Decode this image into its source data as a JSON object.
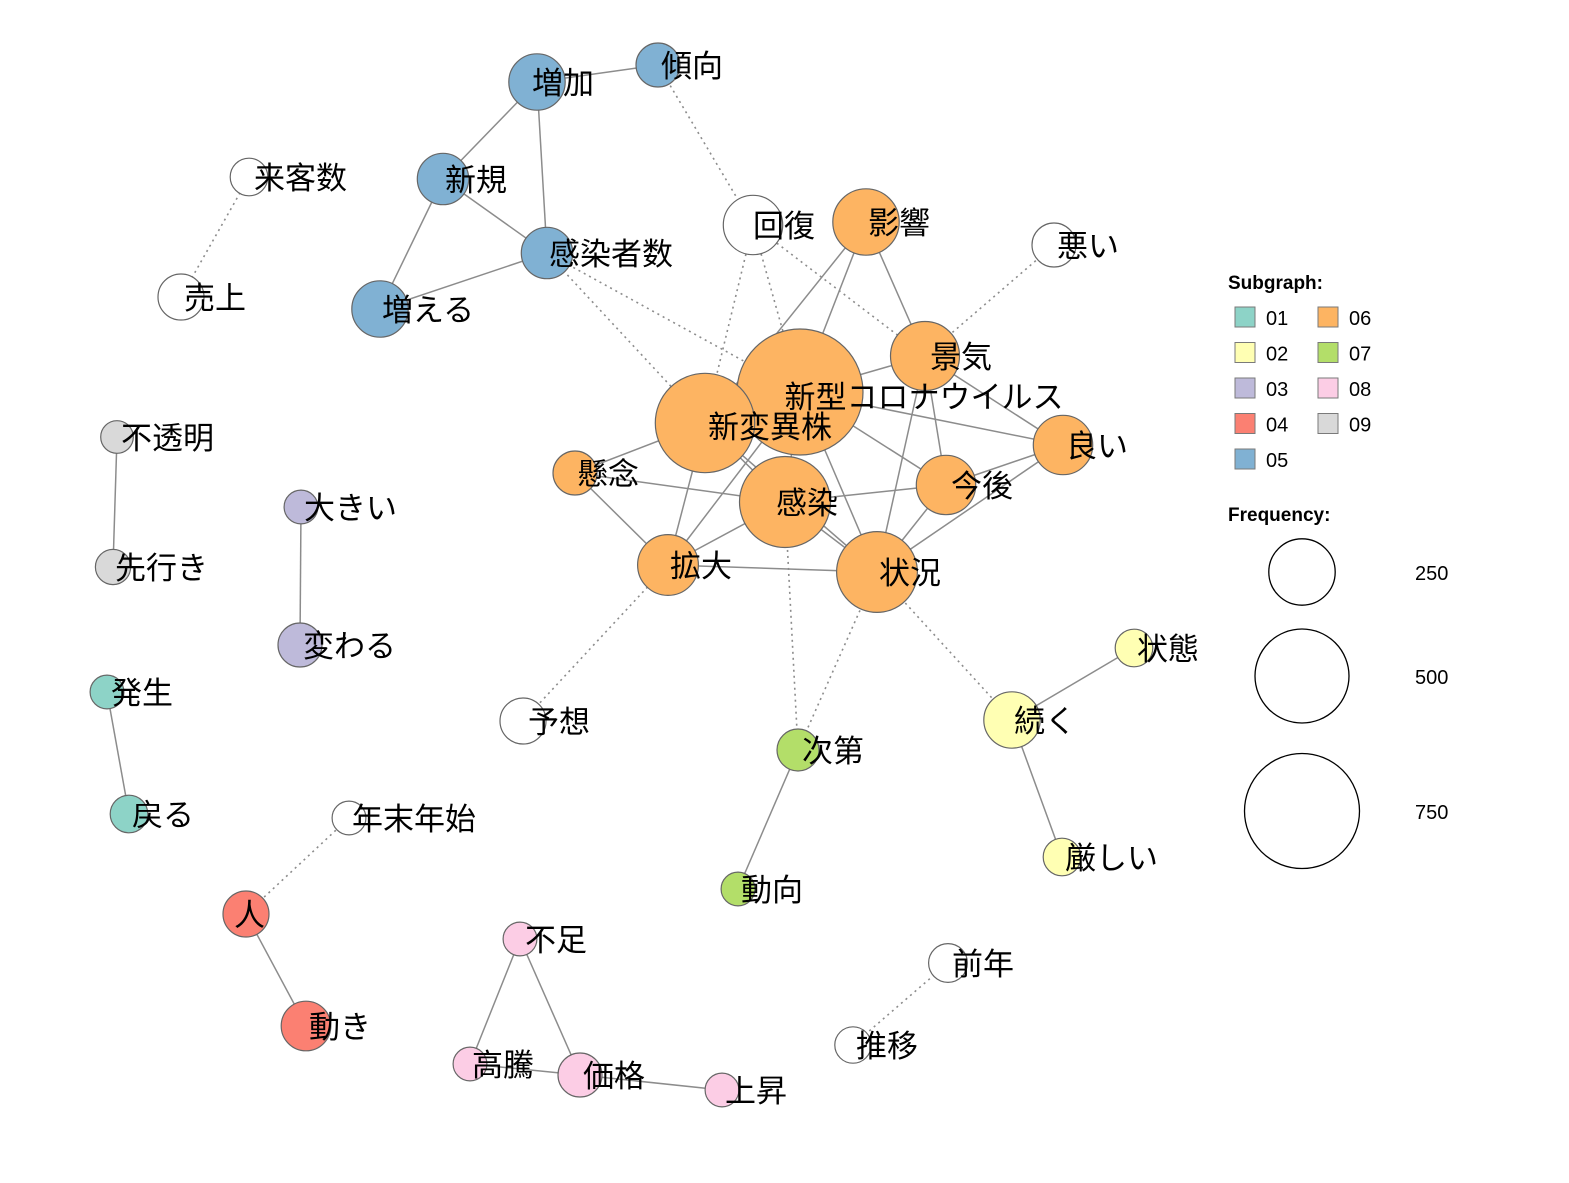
{
  "diagram": {
    "type": "co-occurrence-network",
    "nodes": [
      {
        "id": "zouka",
        "label": "増加",
        "group": "05",
        "freq": 180
      },
      {
        "id": "keikou",
        "label": "傾向",
        "group": "05",
        "freq": 110
      },
      {
        "id": "raikyakusuu",
        "label": "来客数",
        "group": "none",
        "freq": 80
      },
      {
        "id": "uriage",
        "label": "売上",
        "group": "none",
        "freq": 120
      },
      {
        "id": "shinki",
        "label": "新規",
        "group": "05",
        "freq": 150
      },
      {
        "id": "kansenshasuu",
        "label": "感染者数",
        "group": "05",
        "freq": 150
      },
      {
        "id": "fueru",
        "label": "増える",
        "group": "05",
        "freq": 180
      },
      {
        "id": "kaifuku",
        "label": "回復",
        "group": "none",
        "freq": 200
      },
      {
        "id": "eikyou",
        "label": "影響",
        "group": "06",
        "freq": 250
      },
      {
        "id": "warui",
        "label": "悪い",
        "group": "none",
        "freq": 110
      },
      {
        "id": "keiki",
        "label": "景気",
        "group": "06",
        "freq": 270
      },
      {
        "id": "shingata",
        "label": "新型コロナウイルス",
        "group": "06",
        "freq": 900
      },
      {
        "id": "shinhenisyu",
        "label": "新変異株",
        "group": "06",
        "freq": 560
      },
      {
        "id": "yoi",
        "label": "良い",
        "group": "06",
        "freq": 200
      },
      {
        "id": "kenen",
        "label": "懸念",
        "group": "06",
        "freq": 110
      },
      {
        "id": "kongo",
        "label": "今後",
        "group": "06",
        "freq": 200
      },
      {
        "id": "kansen",
        "label": "感染",
        "group": "06",
        "freq": 470
      },
      {
        "id": "kakudai",
        "label": "拡大",
        "group": "06",
        "freq": 210
      },
      {
        "id": "joukyou",
        "label": "状況",
        "group": "06",
        "freq": 370
      },
      {
        "id": "futoumei",
        "label": "不透明",
        "group": "09",
        "freq": 60
      },
      {
        "id": "ookii",
        "label": "大きい",
        "group": "03",
        "freq": 65
      },
      {
        "id": "sakiyuki",
        "label": "先行き",
        "group": "09",
        "freq": 70
      },
      {
        "id": "kawaru",
        "label": "変わる",
        "group": "03",
        "freq": 110
      },
      {
        "id": "hassei",
        "label": "発生",
        "group": "01",
        "freq": 65
      },
      {
        "id": "modoru",
        "label": "戻る",
        "group": "01",
        "freq": 80
      },
      {
        "id": "yosou",
        "label": "予想",
        "group": "none",
        "freq": 120
      },
      {
        "id": "shidai",
        "label": "次第",
        "group": "07",
        "freq": 100
      },
      {
        "id": "tsuzuku",
        "label": "続く",
        "group": "02",
        "freq": 180
      },
      {
        "id": "joutai",
        "label": "状態",
        "group": "02",
        "freq": 80
      },
      {
        "id": "kibishii",
        "label": "厳しい",
        "group": "02",
        "freq": 80
      },
      {
        "id": "doukou",
        "label": "動向",
        "group": "07",
        "freq": 65
      },
      {
        "id": "nenmatsu",
        "label": "年末年始",
        "group": "none",
        "freq": 65
      },
      {
        "id": "hito",
        "label": "人",
        "group": "04",
        "freq": 120
      },
      {
        "id": "ugoki",
        "label": "動き",
        "group": "04",
        "freq": 140
      },
      {
        "id": "fusoku",
        "label": "不足",
        "group": "08",
        "freq": 65
      },
      {
        "id": "koutou",
        "label": "高騰",
        "group": "08",
        "freq": 65
      },
      {
        "id": "kakaku",
        "label": "価格",
        "group": "08",
        "freq": 110
      },
      {
        "id": "joushou",
        "label": "上昇",
        "group": "08",
        "freq": 65
      },
      {
        "id": "zennen",
        "label": "前年",
        "group": "none",
        "freq": 85
      },
      {
        "id": "suii",
        "label": "推移",
        "group": "none",
        "freq": 75
      }
    ],
    "edges": [
      {
        "source": "zouka",
        "target": "keikou",
        "style": "solid"
      },
      {
        "source": "zouka",
        "target": "shinki",
        "style": "solid"
      },
      {
        "source": "zouka",
        "target": "kansenshasuu",
        "style": "solid"
      },
      {
        "source": "shinki",
        "target": "kansenshasuu",
        "style": "solid"
      },
      {
        "source": "shinki",
        "target": "fueru",
        "style": "solid"
      },
      {
        "source": "fueru",
        "target": "kansenshasuu",
        "style": "solid"
      },
      {
        "source": "keikou",
        "target": "kaifuku",
        "style": "dotted"
      },
      {
        "source": "raikyakusuu",
        "target": "uriage",
        "style": "dotted"
      },
      {
        "source": "kansenshasuu",
        "target": "shinhenisyu",
        "style": "dotted"
      },
      {
        "source": "kansenshasuu",
        "target": "shingata",
        "style": "dotted"
      },
      {
        "source": "kaifuku",
        "target": "shingata",
        "style": "dotted"
      },
      {
        "source": "kaifuku",
        "target": "keiki",
        "style": "dotted"
      },
      {
        "source": "kaifuku",
        "target": "shinhenisyu",
        "style": "dotted"
      },
      {
        "source": "eikyou",
        "target": "shinhenisyu",
        "style": "solid"
      },
      {
        "source": "eikyou",
        "target": "shingata",
        "style": "solid"
      },
      {
        "source": "eikyou",
        "target": "keiki",
        "style": "solid"
      },
      {
        "source": "warui",
        "target": "keiki",
        "style": "dotted"
      },
      {
        "source": "keiki",
        "target": "yoi",
        "style": "solid"
      },
      {
        "source": "keiki",
        "target": "kongo",
        "style": "solid"
      },
      {
        "source": "keiki",
        "target": "joukyou",
        "style": "solid"
      },
      {
        "source": "keiki",
        "target": "shingata",
        "style": "solid"
      },
      {
        "source": "shingata",
        "target": "shinhenisyu",
        "style": "solid"
      },
      {
        "source": "shingata",
        "target": "yoi",
        "style": "solid"
      },
      {
        "source": "shingata",
        "target": "kongo",
        "style": "solid"
      },
      {
        "source": "shingata",
        "target": "kansen",
        "style": "solid"
      },
      {
        "source": "shingata",
        "target": "kakudai",
        "style": "solid"
      },
      {
        "source": "shingata",
        "target": "joukyou",
        "style": "solid"
      },
      {
        "source": "shinhenisyu",
        "target": "kenen",
        "style": "solid"
      },
      {
        "source": "shinhenisyu",
        "target": "kansen",
        "style": "solid"
      },
      {
        "source": "shinhenisyu",
        "target": "kakudai",
        "style": "solid"
      },
      {
        "source": "shinhenisyu",
        "target": "joukyou",
        "style": "solid"
      },
      {
        "source": "yoi",
        "target": "kongo",
        "style": "solid"
      },
      {
        "source": "yoi",
        "target": "joukyou",
        "style": "solid"
      },
      {
        "source": "kenen",
        "target": "kansen",
        "style": "solid"
      },
      {
        "source": "kenen",
        "target": "kakudai",
        "style": "solid"
      },
      {
        "source": "kongo",
        "target": "kansen",
        "style": "solid"
      },
      {
        "source": "kongo",
        "target": "joukyou",
        "style": "solid"
      },
      {
        "source": "kansen",
        "target": "kakudai",
        "style": "solid"
      },
      {
        "source": "kansen",
        "target": "joukyou",
        "style": "solid"
      },
      {
        "source": "kakudai",
        "target": "joukyou",
        "style": "solid"
      },
      {
        "source": "kakudai",
        "target": "yosou",
        "style": "dotted"
      },
      {
        "source": "kansen",
        "target": "shidai",
        "style": "dotted"
      },
      {
        "source": "joukyou",
        "target": "shidai",
        "style": "dotted"
      },
      {
        "source": "joukyou",
        "target": "tsuzuku",
        "style": "dotted"
      },
      {
        "source": "shidai",
        "target": "doukou",
        "style": "solid"
      },
      {
        "source": "tsuzuku",
        "target": "joutai",
        "style": "solid"
      },
      {
        "source": "tsuzuku",
        "target": "kibishii",
        "style": "solid"
      },
      {
        "source": "futoumei",
        "target": "sakiyuki",
        "style": "solid"
      },
      {
        "source": "ookii",
        "target": "kawaru",
        "style": "solid"
      },
      {
        "source": "hassei",
        "target": "modoru",
        "style": "solid"
      },
      {
        "source": "nenmatsu",
        "target": "hito",
        "style": "dotted"
      },
      {
        "source": "hito",
        "target": "ugoki",
        "style": "solid"
      },
      {
        "source": "fusoku",
        "target": "koutou",
        "style": "solid"
      },
      {
        "source": "fusoku",
        "target": "kakaku",
        "style": "solid"
      },
      {
        "source": "koutou",
        "target": "kakaku",
        "style": "solid"
      },
      {
        "source": "kakaku",
        "target": "joushou",
        "style": "solid"
      },
      {
        "source": "zennen",
        "target": "suii",
        "style": "dotted"
      }
    ]
  },
  "legend": {
    "subgraph_title": "Subgraph:",
    "subgraph_items": [
      {
        "label": "01",
        "color": "#8dd3c7"
      },
      {
        "label": "06",
        "color": "#fdb462"
      },
      {
        "label": "02",
        "color": "#ffffb3"
      },
      {
        "label": "07",
        "color": "#b3de69"
      },
      {
        "label": "03",
        "color": "#bebada"
      },
      {
        "label": "08",
        "color": "#fccde5"
      },
      {
        "label": "04",
        "color": "#fb8072"
      },
      {
        "label": "09",
        "color": "#d9d9d9"
      },
      {
        "label": "05",
        "color": "#80b1d3"
      }
    ],
    "frequency_title": "Frequency:",
    "frequency_items": [
      {
        "label": "250",
        "value": 250
      },
      {
        "label": "500",
        "value": 500
      },
      {
        "label": "750",
        "value": 750
      }
    ]
  },
  "colors": {
    "group_01": "#8dd3c7",
    "group_02": "#ffffb3",
    "group_03": "#bebada",
    "group_04": "#fb8072",
    "group_05": "#80b1d3",
    "group_06": "#fdb462",
    "group_07": "#b3de69",
    "group_08": "#fccde5",
    "group_09": "#d9d9d9",
    "group_none": "#ffffff",
    "edge": "#8c8c8c",
    "node_stroke": "#666666"
  }
}
